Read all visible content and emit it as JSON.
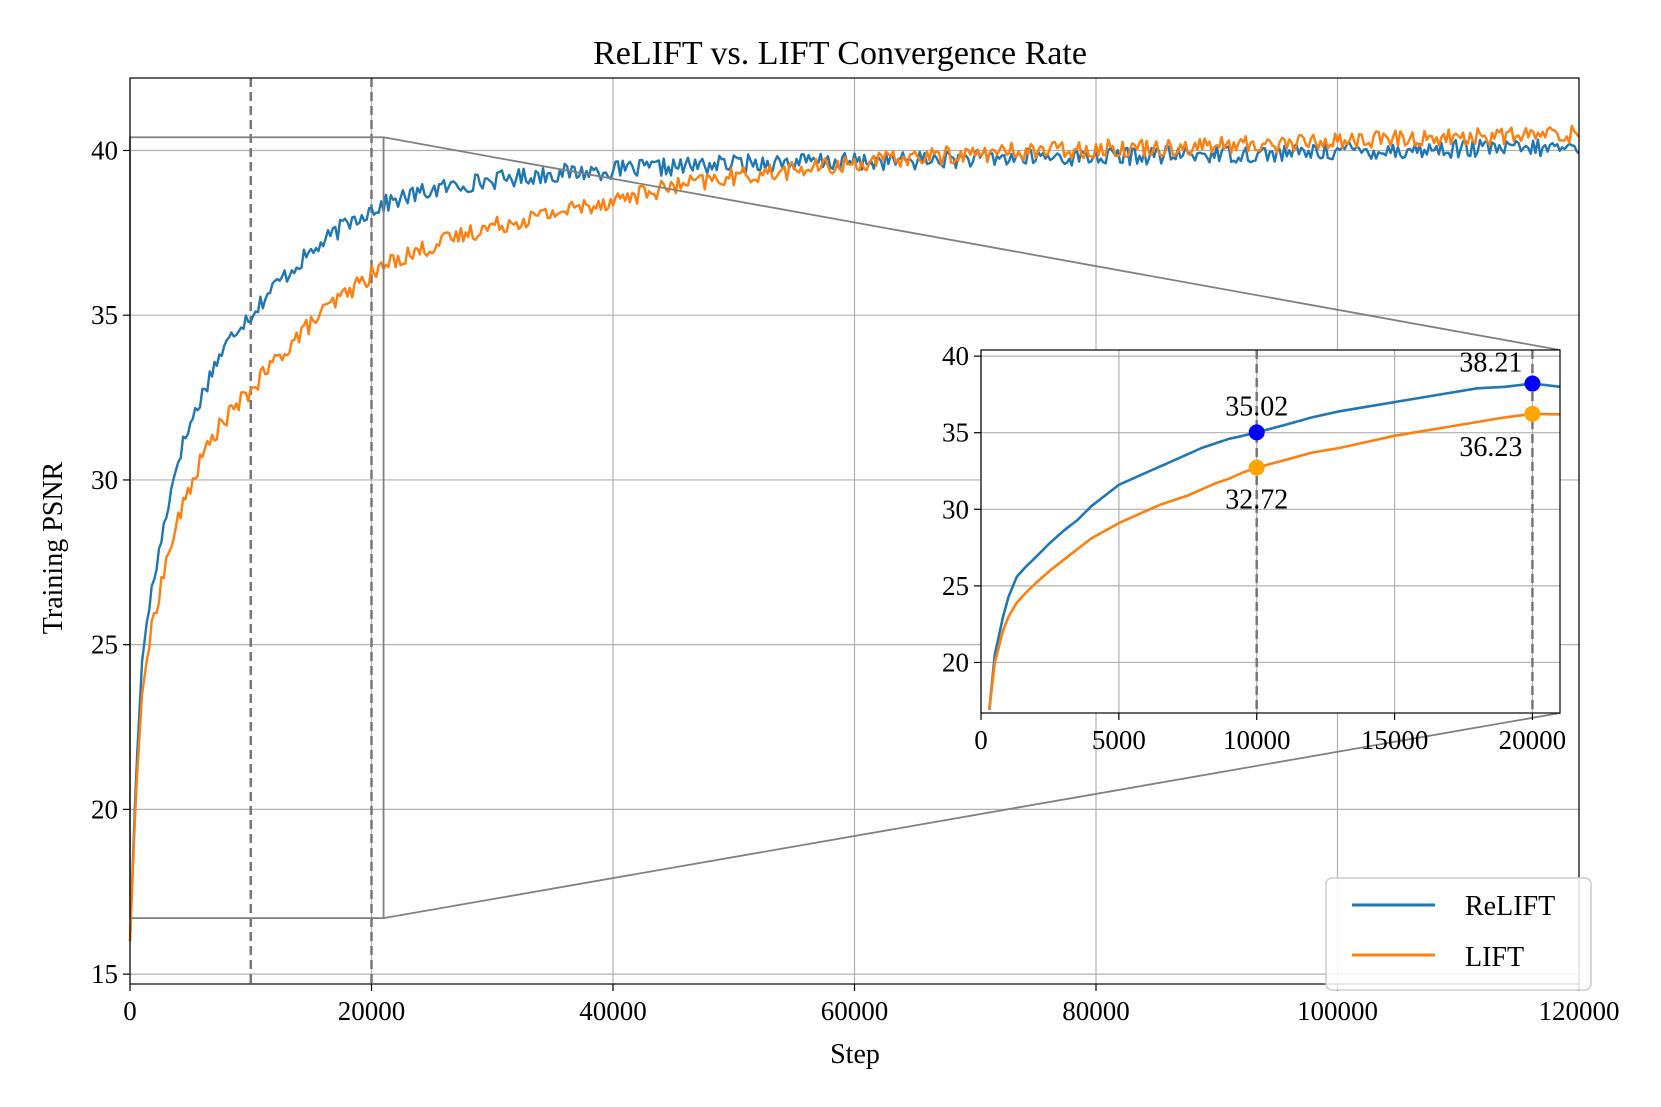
{
  "chart_data": [
    {
      "type": "line",
      "title": "ReLIFT vs. LIFT Convergence Rate",
      "xlabel": "Step",
      "ylabel": "Training PSNR",
      "xlim": [
        0,
        120000
      ],
      "ylim": [
        14.7,
        42.2
      ],
      "xticks": [
        "0",
        "20000",
        "40000",
        "60000",
        "80000",
        "100000",
        "120000"
      ],
      "yticks": [
        "15",
        "20",
        "25",
        "30",
        "35",
        "40"
      ],
      "grid": true,
      "legend": {
        "placement": "bottom-right",
        "entries": [
          "ReLIFT",
          "LIFT"
        ]
      },
      "vlines": [
        10000,
        20000
      ],
      "series": [
        {
          "name": "ReLIFT",
          "color": "#1f77b4",
          "x": [
            0,
            500,
            1000,
            1500,
            2000,
            3000,
            4000,
            5000,
            6000,
            7000,
            8000,
            9000,
            10000,
            12000,
            14000,
            16000,
            18000,
            20000,
            22000,
            25000,
            28000,
            30000,
            35000,
            40000,
            45000,
            50000,
            55000,
            60000,
            65000,
            70000,
            75000,
            80000,
            85000,
            90000,
            95000,
            100000,
            105000,
            110000,
            115000,
            120000
          ],
          "y": [
            16.0,
            21.0,
            24.5,
            26.0,
            27.0,
            29.0,
            30.7,
            31.7,
            32.6,
            33.5,
            34.1,
            34.7,
            35.02,
            35.9,
            36.6,
            37.2,
            37.8,
            38.21,
            38.5,
            38.8,
            39.0,
            39.1,
            39.3,
            39.4,
            39.5,
            39.6,
            39.65,
            39.65,
            39.7,
            39.75,
            39.8,
            39.8,
            39.85,
            39.9,
            39.9,
            40.0,
            40.0,
            40.05,
            40.05,
            40.1
          ]
        },
        {
          "name": "LIFT",
          "color": "#ff7f0e",
          "x": [
            0,
            500,
            1000,
            1500,
            2000,
            3000,
            4000,
            5000,
            6000,
            7000,
            8000,
            9000,
            10000,
            12000,
            14000,
            16000,
            18000,
            20000,
            22000,
            25000,
            28000,
            30000,
            35000,
            40000,
            45000,
            50000,
            55000,
            60000,
            65000,
            70000,
            75000,
            80000,
            85000,
            90000,
            95000,
            100000,
            105000,
            110000,
            115000,
            120000
          ],
          "y": [
            16.0,
            20.5,
            23.5,
            24.8,
            25.9,
            27.5,
            28.8,
            29.8,
            30.7,
            31.4,
            31.9,
            32.3,
            32.72,
            33.6,
            34.4,
            35.1,
            35.7,
            36.23,
            36.7,
            37.1,
            37.5,
            37.7,
            38.1,
            38.5,
            38.9,
            39.2,
            39.4,
            39.6,
            39.8,
            39.9,
            40.0,
            40.05,
            40.1,
            40.15,
            40.2,
            40.3,
            40.35,
            40.4,
            40.45,
            40.5
          ]
        }
      ]
    },
    {
      "type": "line",
      "title": "",
      "xlim": [
        0,
        21000
      ],
      "ylim": [
        16.7,
        40.4
      ],
      "xticks": [
        "0",
        "5000",
        "10000",
        "15000",
        "20000"
      ],
      "yticks": [
        "20",
        "25",
        "30",
        "35",
        "40"
      ],
      "grid": true,
      "vlines": [
        10000,
        20000
      ],
      "annotations": [
        {
          "series": "ReLIFT",
          "x": 10000,
          "y": 35.02,
          "label": "35.02",
          "color": "#0000ff",
          "label_position": "above"
        },
        {
          "series": "LIFT",
          "x": 10000,
          "y": 32.72,
          "label": "32.72",
          "color": "#ffa500",
          "label_position": "below"
        },
        {
          "series": "ReLIFT",
          "x": 20000,
          "y": 38.21,
          "label": "38.21",
          "color": "#0000ff",
          "label_position": "above-left"
        },
        {
          "series": "LIFT",
          "x": 20000,
          "y": 36.23,
          "label": "36.23",
          "color": "#ffa500",
          "label_position": "below-left"
        }
      ],
      "series": [
        {
          "name": "ReLIFT",
          "color": "#1f77b4",
          "x": [
            300,
            500,
            800,
            1000,
            1300,
            1600,
            2000,
            2500,
            3000,
            3500,
            4000,
            4500,
            5000,
            5500,
            6000,
            6500,
            7000,
            7500,
            8000,
            8500,
            9000,
            9500,
            10000,
            11000,
            12000,
            13000,
            14000,
            15000,
            16000,
            17000,
            18000,
            19000,
            20000,
            21000
          ],
          "y": [
            16.9,
            20.5,
            23.0,
            24.3,
            25.6,
            26.2,
            26.9,
            27.8,
            28.6,
            29.3,
            30.2,
            30.9,
            31.6,
            32.0,
            32.4,
            32.8,
            33.2,
            33.6,
            34.0,
            34.3,
            34.6,
            34.8,
            35.02,
            35.5,
            36.0,
            36.4,
            36.7,
            37.0,
            37.3,
            37.6,
            37.9,
            38.0,
            38.21,
            38.0
          ]
        },
        {
          "name": "LIFT",
          "color": "#ff7f0e",
          "x": [
            300,
            500,
            800,
            1000,
            1300,
            1600,
            2000,
            2500,
            3000,
            3500,
            4000,
            4500,
            5000,
            5500,
            6000,
            6500,
            7000,
            7500,
            8000,
            8500,
            9000,
            9500,
            10000,
            11000,
            12000,
            13000,
            14000,
            15000,
            16000,
            17000,
            18000,
            19000,
            20000,
            21000
          ],
          "y": [
            16.9,
            20.0,
            22.1,
            23.0,
            23.9,
            24.5,
            25.2,
            26.0,
            26.7,
            27.4,
            28.1,
            28.6,
            29.1,
            29.5,
            29.9,
            30.3,
            30.6,
            30.9,
            31.3,
            31.7,
            32.0,
            32.4,
            32.72,
            33.2,
            33.7,
            34.0,
            34.4,
            34.8,
            35.1,
            35.4,
            35.7,
            36.0,
            36.23,
            36.2
          ]
        }
      ]
    }
  ]
}
